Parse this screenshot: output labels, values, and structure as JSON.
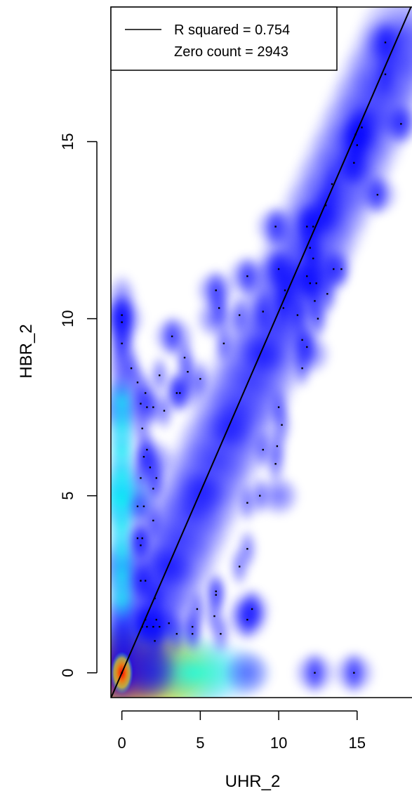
{
  "chart_data": {
    "type": "scatter",
    "xlabel": "UHR_2",
    "ylabel": "HBR_2",
    "xlim": [
      -0.7,
      18.5
    ],
    "ylim": [
      -0.7,
      18.8
    ],
    "xticks": [
      "0",
      "5",
      "10",
      "15"
    ],
    "yticks": [
      "0",
      "5",
      "10",
      "15"
    ],
    "legend": {
      "position": "top-left",
      "line_label": "R squared = 0.754",
      "zero_label": "Zero count = 2943"
    },
    "fit_line": {
      "intercept": 0.0,
      "slope": 1.02
    },
    "density_colors": [
      "#0000ff",
      "#00ffff",
      "#ff0000"
    ],
    "density_clusters": [
      [
        0,
        0,
        3.0
      ],
      [
        4.6,
        0,
        1.5
      ],
      [
        2.0,
        0,
        0.6
      ],
      [
        8.0,
        0,
        0.4
      ],
      [
        12.3,
        0,
        0.2
      ],
      [
        14.8,
        0,
        0.2
      ],
      [
        0,
        5,
        1.3
      ],
      [
        0,
        3,
        0.7
      ],
      [
        0,
        7.5,
        0.7
      ],
      [
        0,
        10,
        0.35
      ],
      [
        3,
        3,
        0.45
      ],
      [
        5,
        5,
        0.45
      ],
      [
        7,
        7,
        0.35
      ],
      [
        9,
        9,
        0.3
      ],
      [
        11,
        11,
        0.25
      ],
      [
        13,
        13,
        0.2
      ],
      [
        15,
        15,
        0.2
      ],
      [
        2,
        6,
        0.25
      ],
      [
        4,
        8,
        0.2
      ],
      [
        6,
        10,
        0.15
      ],
      [
        8,
        1.5,
        0.2
      ],
      [
        10,
        5,
        0.15
      ],
      [
        12,
        9,
        0.15
      ],
      [
        3.3,
        9.5,
        0.15
      ],
      [
        6.0,
        10.8,
        0.15
      ],
      [
        8.0,
        11.2,
        0.15
      ],
      [
        10.0,
        11.4,
        0.15
      ],
      [
        13.0,
        11.3,
        0.15
      ],
      [
        9.8,
        12.6,
        0.15
      ],
      [
        12.2,
        12.7,
        0.15
      ],
      [
        16.3,
        13.5,
        0.15
      ],
      [
        17.8,
        15.5,
        0.15
      ],
      [
        16.8,
        17.8,
        0.15
      ],
      [
        15.3,
        15.4,
        0.2
      ],
      [
        14.8,
        14.3,
        0.15
      ],
      [
        8.2,
        1.8,
        0.15
      ]
    ],
    "points": [
      [
        0,
        0
      ],
      [
        0,
        9.9
      ],
      [
        0,
        10.1
      ],
      [
        0,
        9.3
      ],
      [
        0.6,
        8.6
      ],
      [
        1.0,
        8.2
      ],
      [
        2.4,
        8.4
      ],
      [
        3.5,
        7.9
      ],
      [
        3.7,
        7.9
      ],
      [
        4.2,
        8.5
      ],
      [
        5.0,
        8.3
      ],
      [
        4.0,
        8.9
      ],
      [
        3.2,
        9.5
      ],
      [
        6.2,
        10.3
      ],
      [
        6.0,
        10.8
      ],
      [
        6.5,
        9.3
      ],
      [
        7.5,
        10.1
      ],
      [
        8.0,
        11.2
      ],
      [
        9.8,
        12.6
      ],
      [
        10.0,
        11.4
      ],
      [
        11.8,
        12.6
      ],
      [
        12.2,
        12.6
      ],
      [
        11.8,
        11.2
      ],
      [
        12.0,
        11.0
      ],
      [
        12.4,
        11.0
      ],
      [
        13.1,
        10.7
      ],
      [
        13.5,
        11.4
      ],
      [
        14.0,
        11.4
      ],
      [
        12.5,
        10.0
      ],
      [
        12.3,
        10.5
      ],
      [
        11.2,
        10.1
      ],
      [
        10.4,
        10.8
      ],
      [
        10.3,
        10.3
      ],
      [
        9.0,
        10.2
      ],
      [
        11.5,
        9.4
      ],
      [
        11.8,
        9.2
      ],
      [
        11.5,
        8.6
      ],
      [
        10.0,
        7.5
      ],
      [
        10.2,
        7.0
      ],
      [
        9.9,
        6.4
      ],
      [
        9.0,
        6.3
      ],
      [
        9.8,
        5.9
      ],
      [
        8.8,
        5.0
      ],
      [
        8.0,
        4.8
      ],
      [
        8.0,
        3.5
      ],
      [
        7.5,
        3.0
      ],
      [
        6.0,
        2.3
      ],
      [
        6.0,
        2.2
      ],
      [
        8.0,
        1.5
      ],
      [
        8.3,
        1.8
      ],
      [
        6.3,
        1.1
      ],
      [
        5.9,
        1.6
      ],
      [
        4.5,
        1.3
      ],
      [
        4.8,
        1.8
      ],
      [
        4.5,
        1.1
      ],
      [
        3.5,
        1.1
      ],
      [
        3.0,
        1.4
      ],
      [
        2.4,
        1.3
      ],
      [
        2.2,
        1.5
      ],
      [
        2.0,
        1.3
      ],
      [
        2.1,
        0.9
      ],
      [
        1.6,
        1.3
      ],
      [
        1.3,
        1.3
      ],
      [
        1.5,
        1.5
      ],
      [
        1.2,
        2.6
      ],
      [
        1.5,
        2.6
      ],
      [
        2.1,
        2.1
      ],
      [
        1.2,
        3.6
      ],
      [
        1.0,
        3.8
      ],
      [
        1.3,
        3.8
      ],
      [
        1.4,
        4.7
      ],
      [
        1.0,
        4.7
      ],
      [
        2.0,
        4.3
      ],
      [
        1.2,
        5.5
      ],
      [
        1.8,
        5.8
      ],
      [
        2.0,
        5.2
      ],
      [
        2.2,
        5.5
      ],
      [
        1.4,
        6.1
      ],
      [
        1.6,
        6.3
      ],
      [
        1.3,
        6.9
      ],
      [
        1.2,
        7.6
      ],
      [
        1.5,
        7.9
      ],
      [
        2.0,
        7.5
      ],
      [
        2.7,
        7.4
      ],
      [
        1.6,
        7.5
      ],
      [
        13.0,
        13.2
      ],
      [
        13.4,
        13.8
      ],
      [
        14.8,
        14.4
      ],
      [
        15.0,
        14.9
      ],
      [
        15.3,
        15.4
      ],
      [
        14.9,
        15.2
      ],
      [
        16.3,
        13.5
      ],
      [
        17.8,
        15.5
      ],
      [
        16.8,
        16.9
      ],
      [
        16.8,
        17.8
      ],
      [
        12.3,
        0
      ],
      [
        14.8,
        0
      ],
      [
        12.0,
        12.0
      ],
      [
        12.2,
        11.7
      ]
    ]
  }
}
